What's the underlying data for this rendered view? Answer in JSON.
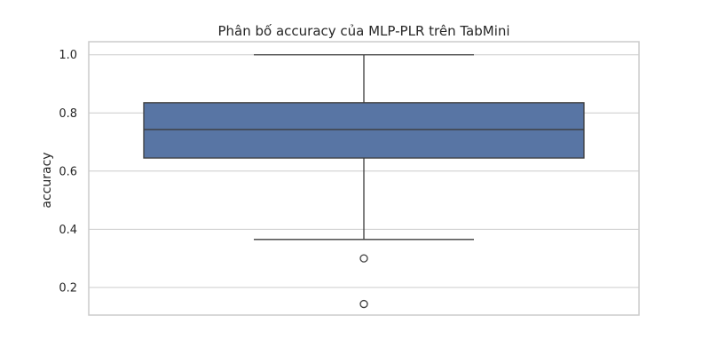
{
  "chart_data": {
    "type": "box",
    "title": "Phân bố accuracy của MLP-PLR trên TabMini",
    "xlabel": "",
    "ylabel": "accuracy",
    "ylim": [
      0.105,
      1.045
    ],
    "yticks": [
      "0.2",
      "0.4",
      "0.6",
      "0.8",
      "1.0"
    ],
    "grid": "horizontal",
    "box": {
      "q1": 0.645,
      "median": 0.743,
      "q3": 0.835,
      "whisker_low": 0.365,
      "whisker_high": 1.0,
      "outliers": [
        0.3,
        0.143
      ]
    },
    "colors": {
      "box_fill": "#5875a4",
      "box_edge": "#3d3d3d",
      "grid": "#cccccc",
      "frame": "#cccccc"
    }
  }
}
